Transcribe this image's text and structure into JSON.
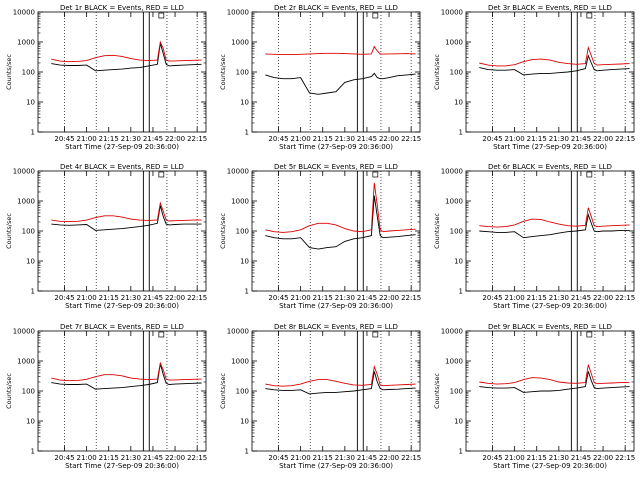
{
  "figure": {
    "start_time_label": "Start Time (27-Sep-09 20:36:00)"
  },
  "colors": {
    "events": "#000000",
    "lld": "#dd0000",
    "axis": "#000000"
  },
  "chart_data": [
    {
      "type": "line",
      "title": "Det 1r BLACK = Events, RED = LLD",
      "xlabel": "Start Time (27-Sep-09 20:36:00)",
      "ylabel": "Counts/sec",
      "yscale": "log",
      "ylim": [
        1,
        10000
      ],
      "x_ticks": [
        "20:45",
        "21:00",
        "21:15",
        "21:30",
        "21:45",
        "22:00",
        "22:15"
      ],
      "y_ticks": [
        "1",
        "10",
        "100",
        "1000",
        "10000"
      ],
      "x_minutes": [
        0,
        6,
        12,
        18,
        24,
        30,
        36,
        42,
        48,
        54,
        60,
        66,
        72,
        74,
        76,
        78,
        80,
        84,
        90,
        96,
        102
      ],
      "series": [
        {
          "name": "BLACK = Events",
          "values": [
            190,
            170,
            165,
            165,
            170,
            110,
            115,
            120,
            125,
            135,
            140,
            160,
            180,
            900,
            400,
            180,
            160,
            165,
            170,
            175,
            180
          ]
        },
        {
          "name": "RED = LLD",
          "values": [
            270,
            230,
            220,
            225,
            240,
            300,
            350,
            360,
            330,
            280,
            250,
            240,
            250,
            1000,
            600,
            250,
            230,
            235,
            240,
            245,
            250
          ]
        }
      ]
    },
    {
      "type": "line",
      "title": "Det 2r BLACK = Events, RED = LLD",
      "xlabel": "Start Time (27-Sep-09 20:36:00)",
      "ylabel": "Counts/sec",
      "yscale": "log",
      "ylim": [
        1,
        10000
      ],
      "x_ticks": [
        "20:45",
        "21:00",
        "21:15",
        "21:30",
        "21:45",
        "22:00",
        "22:15"
      ],
      "y_ticks": [
        "1",
        "10",
        "100",
        "1000",
        "10000"
      ],
      "x_minutes": [
        0,
        6,
        12,
        18,
        24,
        30,
        36,
        42,
        48,
        54,
        60,
        66,
        72,
        74,
        76,
        78,
        80,
        84,
        90,
        96,
        102
      ],
      "series": [
        {
          "name": "BLACK = Events",
          "values": [
            80,
            65,
            60,
            60,
            65,
            20,
            18,
            20,
            22,
            45,
            55,
            60,
            70,
            90,
            65,
            60,
            60,
            65,
            75,
            80,
            85
          ]
        },
        {
          "name": "RED = LLD",
          "values": [
            400,
            390,
            380,
            380,
            390,
            400,
            410,
            420,
            420,
            410,
            400,
            390,
            400,
            700,
            500,
            400,
            395,
            400,
            405,
            410,
            400
          ]
        }
      ]
    },
    {
      "type": "line",
      "title": "Det 3r BLACK = Events, RED = LLD",
      "xlabel": "Start Time (27-Sep-09 20:36:00)",
      "ylabel": "Counts/sec",
      "yscale": "log",
      "ylim": [
        1,
        10000
      ],
      "x_ticks": [
        "20:45",
        "21:00",
        "21:15",
        "21:30",
        "21:45",
        "22:00",
        "22:15"
      ],
      "y_ticks": [
        "1",
        "10",
        "100",
        "1000",
        "10000"
      ],
      "x_minutes": [
        0,
        6,
        12,
        18,
        24,
        30,
        36,
        42,
        48,
        54,
        60,
        66,
        72,
        74,
        76,
        78,
        80,
        84,
        90,
        96,
        102
      ],
      "series": [
        {
          "name": "BLACK = Events",
          "values": [
            140,
            120,
            115,
            115,
            120,
            80,
            85,
            90,
            90,
            95,
            100,
            110,
            130,
            350,
            200,
            120,
            110,
            115,
            120,
            125,
            130
          ]
        },
        {
          "name": "RED = LLD",
          "values": [
            200,
            170,
            160,
            160,
            175,
            220,
            260,
            270,
            250,
            210,
            190,
            180,
            190,
            650,
            350,
            190,
            170,
            175,
            180,
            185,
            190
          ]
        }
      ]
    },
    {
      "type": "line",
      "title": "Det 4r BLACK = Events, RED = LLD",
      "xlabel": "Start Time (27-Sep-09 20:36:00)",
      "ylabel": "Counts/sec",
      "yscale": "log",
      "ylim": [
        1,
        10000
      ],
      "x_ticks": [
        "20:45",
        "21:00",
        "21:15",
        "21:30",
        "21:45",
        "22:00",
        "22:15"
      ],
      "y_ticks": [
        "1",
        "10",
        "100",
        "1000",
        "10000"
      ],
      "x_minutes": [
        0,
        6,
        12,
        18,
        24,
        30,
        36,
        42,
        48,
        54,
        60,
        66,
        72,
        74,
        76,
        78,
        80,
        84,
        90,
        96,
        102
      ],
      "series": [
        {
          "name": "BLACK = Events",
          "values": [
            170,
            160,
            155,
            160,
            165,
            105,
            110,
            115,
            120,
            130,
            140,
            155,
            180,
            700,
            300,
            170,
            160,
            165,
            170,
            170,
            170
          ]
        },
        {
          "name": "RED = LLD",
          "values": [
            230,
            210,
            205,
            210,
            230,
            280,
            320,
            320,
            290,
            250,
            230,
            225,
            235,
            850,
            450,
            230,
            215,
            220,
            225,
            230,
            235
          ]
        }
      ]
    },
    {
      "type": "line",
      "title": "Det 5r BLACK = Events, RED = LLD",
      "xlabel": "Start Time (27-Sep-09 20:36:00)",
      "ylabel": "Counts/sec",
      "yscale": "log",
      "ylim": [
        1,
        10000
      ],
      "x_ticks": [
        "20:45",
        "21:00",
        "21:15",
        "21:30",
        "21:45",
        "22:00",
        "22:15"
      ],
      "y_ticks": [
        "1",
        "10",
        "100",
        "1000",
        "10000"
      ],
      "x_minutes": [
        0,
        6,
        12,
        18,
        24,
        30,
        36,
        42,
        48,
        54,
        60,
        66,
        72,
        74,
        76,
        78,
        80,
        84,
        90,
        96,
        102
      ],
      "series": [
        {
          "name": "BLACK = Events",
          "values": [
            70,
            60,
            55,
            55,
            60,
            28,
            25,
            28,
            30,
            45,
            55,
            60,
            70,
            1500,
            300,
            70,
            60,
            62,
            65,
            70,
            75
          ]
        },
        {
          "name": "RED = LLD",
          "values": [
            110,
            95,
            90,
            95,
            110,
            150,
            180,
            180,
            160,
            120,
            100,
            95,
            110,
            4000,
            700,
            110,
            95,
            100,
            105,
            110,
            115
          ]
        }
      ]
    },
    {
      "type": "line",
      "title": "Det 6r BLACK = Events, RED = LLD",
      "xlabel": "Start Time (27-Sep-09 20:36:00)",
      "ylabel": "Counts/sec",
      "yscale": "log",
      "ylim": [
        1,
        10000
      ],
      "x_ticks": [
        "20:45",
        "21:00",
        "21:15",
        "21:30",
        "21:45",
        "22:00",
        "22:15"
      ],
      "y_ticks": [
        "1",
        "10",
        "100",
        "1000",
        "10000"
      ],
      "x_minutes": [
        0,
        6,
        12,
        18,
        24,
        30,
        36,
        42,
        48,
        54,
        60,
        66,
        72,
        74,
        76,
        78,
        80,
        84,
        90,
        96,
        102
      ],
      "series": [
        {
          "name": "BLACK = Events",
          "values": [
            100,
            95,
            90,
            90,
            95,
            60,
            65,
            70,
            75,
            85,
            95,
            100,
            110,
            350,
            180,
            100,
            95,
            100,
            100,
            105,
            105
          ]
        },
        {
          "name": "RED = LLD",
          "values": [
            150,
            140,
            135,
            140,
            160,
            210,
            250,
            240,
            200,
            170,
            150,
            145,
            155,
            600,
            300,
            150,
            140,
            145,
            150,
            155,
            160
          ]
        }
      ]
    },
    {
      "type": "line",
      "title": "Det 7r BLACK = Events, RED = LLD",
      "xlabel": "Start Time (27-Sep-09 20:36:00)",
      "ylabel": "Counts/sec",
      "yscale": "log",
      "ylim": [
        1,
        10000
      ],
      "x_ticks": [
        "20:45",
        "21:00",
        "21:15",
        "21:30",
        "21:45",
        "22:00",
        "22:15"
      ],
      "y_ticks": [
        "1",
        "10",
        "100",
        "1000",
        "10000"
      ],
      "x_minutes": [
        0,
        6,
        12,
        18,
        24,
        30,
        36,
        42,
        48,
        54,
        60,
        66,
        72,
        74,
        76,
        78,
        80,
        84,
        90,
        96,
        102
      ],
      "series": [
        {
          "name": "BLACK = Events",
          "values": [
            190,
            170,
            165,
            165,
            170,
            115,
            120,
            125,
            130,
            140,
            150,
            165,
            190,
            800,
            350,
            180,
            165,
            170,
            175,
            180,
            185
          ]
        },
        {
          "name": "RED = LLD",
          "values": [
            270,
            230,
            220,
            225,
            245,
            300,
            350,
            350,
            320,
            270,
            250,
            240,
            250,
            850,
            500,
            250,
            230,
            235,
            240,
            245,
            250
          ]
        }
      ]
    },
    {
      "type": "line",
      "title": "Det 8r BLACK = Events, RED = LLD",
      "xlabel": "Start Time (27-Sep-09 20:36:00)",
      "ylabel": "Counts/sec",
      "yscale": "log",
      "ylim": [
        1,
        10000
      ],
      "x_ticks": [
        "20:45",
        "21:00",
        "21:15",
        "21:30",
        "21:45",
        "22:00",
        "22:15"
      ],
      "y_ticks": [
        "1",
        "10",
        "100",
        "1000",
        "10000"
      ],
      "x_minutes": [
        0,
        6,
        12,
        18,
        24,
        30,
        36,
        42,
        48,
        54,
        60,
        66,
        72,
        74,
        76,
        78,
        80,
        84,
        90,
        96,
        102
      ],
      "series": [
        {
          "name": "BLACK = Events",
          "values": [
            120,
            110,
            105,
            105,
            110,
            80,
            85,
            90,
            90,
            95,
            100,
            110,
            120,
            450,
            200,
            120,
            110,
            112,
            115,
            120,
            125
          ]
        },
        {
          "name": "RED = LLD",
          "values": [
            170,
            150,
            145,
            150,
            170,
            210,
            240,
            240,
            210,
            180,
            160,
            155,
            165,
            650,
            350,
            160,
            150,
            155,
            160,
            165,
            170
          ]
        }
      ]
    },
    {
      "type": "line",
      "title": "Det 9r BLACK = Events, RED = LLD",
      "xlabel": "Start Time (27-Sep-09 20:36:00)",
      "ylabel": "Counts/sec",
      "yscale": "log",
      "ylim": [
        1,
        10000
      ],
      "x_ticks": [
        "20:45",
        "21:00",
        "21:15",
        "21:30",
        "21:45",
        "22:00",
        "22:15"
      ],
      "y_ticks": [
        "1",
        "10",
        "100",
        "1000",
        "10000"
      ],
      "x_minutes": [
        0,
        6,
        12,
        18,
        24,
        30,
        36,
        42,
        48,
        54,
        60,
        66,
        72,
        74,
        76,
        78,
        80,
        84,
        90,
        96,
        102
      ],
      "series": [
        {
          "name": "BLACK = Events",
          "values": [
            140,
            130,
            125,
            125,
            130,
            90,
            95,
            100,
            100,
            105,
            115,
            125,
            140,
            450,
            220,
            130,
            120,
            125,
            130,
            135,
            140
          ]
        },
        {
          "name": "RED = LLD",
          "values": [
            200,
            180,
            170,
            175,
            190,
            240,
            280,
            270,
            240,
            200,
            185,
            180,
            190,
            750,
            380,
            190,
            175,
            180,
            185,
            190,
            195
          ]
        }
      ]
    }
  ]
}
